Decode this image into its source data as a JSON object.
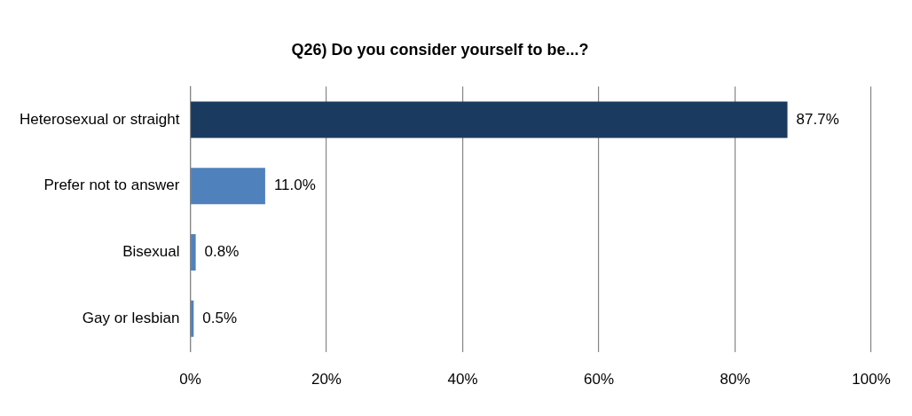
{
  "chart_data": {
    "type": "bar",
    "orientation": "horizontal",
    "title": "Q26) Do you consider yourself to be...?",
    "categories": [
      "Heterosexual or straight",
      "Prefer not to answer",
      "Bisexual",
      "Gay or lesbian"
    ],
    "values": [
      87.7,
      11.0,
      0.8,
      0.5
    ],
    "colors": [
      "#1b3a5f",
      "#4f81bd",
      "#4f81bd",
      "#4f81bd"
    ],
    "value_labels": [
      "87.7%",
      "11.0%",
      "0.8%",
      "0.5%"
    ],
    "xlim": [
      0,
      100
    ],
    "xticks": [
      {
        "value": 0,
        "label": "0%"
      },
      {
        "value": 20,
        "label": "20%"
      },
      {
        "value": 40,
        "label": "40%"
      },
      {
        "value": 60,
        "label": "60%"
      },
      {
        "value": 80,
        "label": "80%"
      },
      {
        "value": 100,
        "label": "100%"
      }
    ],
    "grid": "x"
  }
}
